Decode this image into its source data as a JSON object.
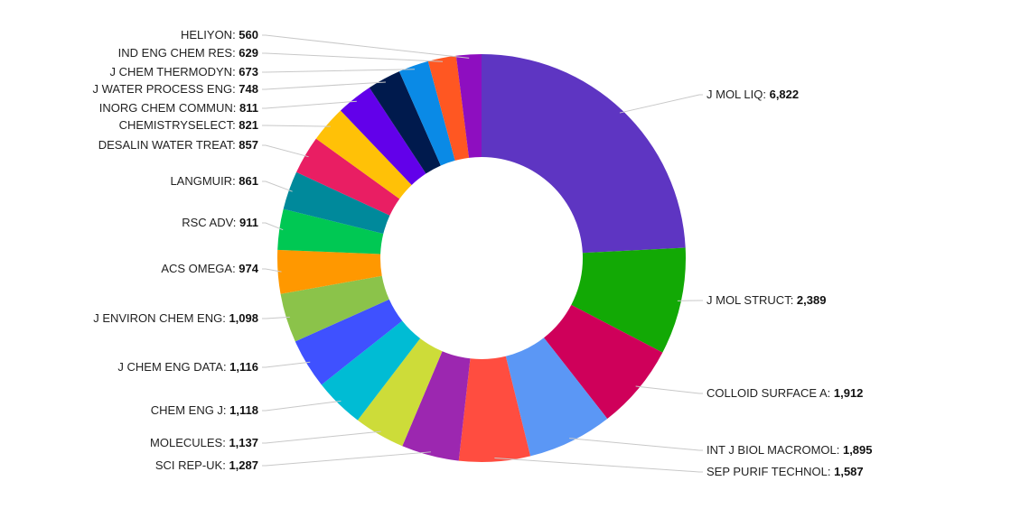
{
  "chart_data": {
    "type": "pie",
    "donut": true,
    "title": "",
    "legend": "none",
    "slices": [
      {
        "label": "J MOL LIQ",
        "value": 6822,
        "display": "6,822",
        "color": "#5e35c2"
      },
      {
        "label": "J MOL STRUCT",
        "value": 2389,
        "display": "2,389",
        "color": "#12a905"
      },
      {
        "label": "COLLOID SURFACE A",
        "value": 1912,
        "display": "1,912",
        "color": "#cf005a"
      },
      {
        "label": "INT J BIOL MACROMOL",
        "value": 1895,
        "display": "1,895",
        "color": "#5b97f5"
      },
      {
        "label": "SEP PURIF TECHNOL",
        "value": 1587,
        "display": "1,587",
        "color": "#ff4d40"
      },
      {
        "label": "SCI REP-UK",
        "value": 1287,
        "display": "1,287",
        "color": "#9c27b0"
      },
      {
        "label": "MOLECULES",
        "value": 1137,
        "display": "1,137",
        "color": "#cddc39"
      },
      {
        "label": "CHEM ENG J",
        "value": 1118,
        "display": "1,118",
        "color": "#00bcd4"
      },
      {
        "label": "J CHEM ENG DATA",
        "value": 1116,
        "display": "1,116",
        "color": "#3f51ff"
      },
      {
        "label": "J ENVIRON CHEM ENG",
        "value": 1098,
        "display": "1,098",
        "color": "#8bc34a"
      },
      {
        "label": "ACS OMEGA",
        "value": 974,
        "display": "974",
        "color": "#ff9800"
      },
      {
        "label": "RSC ADV",
        "value": 911,
        "display": "911",
        "color": "#00c853"
      },
      {
        "label": "LANGMUIR",
        "value": 861,
        "display": "861",
        "color": "#00899b"
      },
      {
        "label": "DESALIN WATER TREAT",
        "value": 857,
        "display": "857",
        "color": "#e91e63"
      },
      {
        "label": "CHEMISTRYSELECT",
        "value": 821,
        "display": "821",
        "color": "#ffc107"
      },
      {
        "label": "INORG CHEM COMMUN",
        "value": 811,
        "display": "811",
        "color": "#6200ea"
      },
      {
        "label": "J WATER PROCESS ENG",
        "value": 748,
        "display": "748",
        "color": "#001a4d"
      },
      {
        "label": "J CHEM THERMODYN",
        "value": 673,
        "display": "673",
        "color": "#0a8ae6"
      },
      {
        "label": "IND ENG CHEM RES",
        "value": 629,
        "display": "629",
        "color": "#ff5722"
      },
      {
        "label": "HELIYON",
        "value": 560,
        "display": "560",
        "color": "#8e0ec0"
      }
    ]
  }
}
